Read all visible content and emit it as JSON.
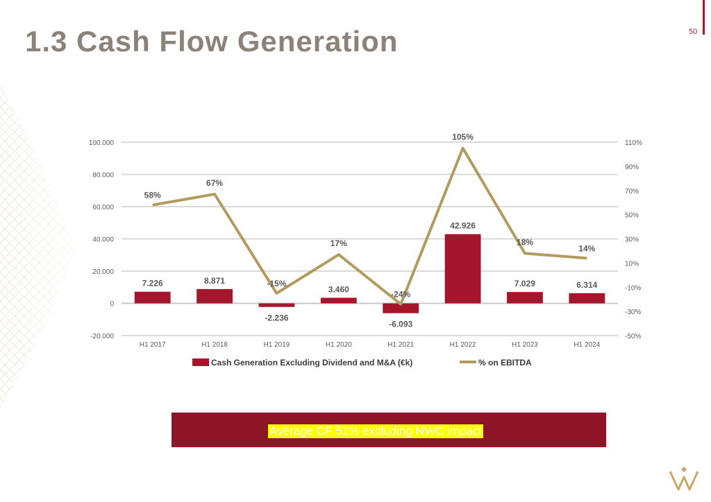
{
  "slide": {
    "title": "1.3 Cash Flow Generation",
    "page_number": "50",
    "callout": "Average CF 51% excluding NWC impact"
  },
  "colors": {
    "title": "#8c8279",
    "accent": "#9e1b2e",
    "bar": "#a3162c",
    "line": "#b39b60",
    "banner": "#8e1528",
    "highlight": "#ffff00"
  },
  "chart_data": {
    "type": "bar",
    "categories": [
      "H1 2017",
      "H1 2018",
      "H1 2019",
      "H1 2020",
      "H1 2021",
      "H1 2022",
      "H1 2023",
      "H1 2024"
    ],
    "series": [
      {
        "name": "Cash Generation Excluding Dividend and M&A (€k)",
        "type": "bar",
        "axis": "left",
        "values": [
          7226,
          8871,
          -2236,
          3460,
          -6093,
          42926,
          7029,
          6314
        ],
        "labels": [
          "7.226",
          "8.871",
          "-2.236",
          "3.460",
          "-6.093",
          "42.926",
          "7.029",
          "6.314"
        ]
      },
      {
        "name": "% on EBITDA",
        "type": "line",
        "axis": "right",
        "values": [
          58,
          67,
          -15,
          17,
          -24,
          105,
          18,
          14
        ],
        "labels": [
          "58%",
          "67%",
          "-15%",
          "17%",
          "-24%",
          "105%",
          "18%",
          "14%"
        ]
      }
    ],
    "y_left": {
      "lim": [
        -20000,
        100000
      ],
      "ticks": [
        100000,
        80000,
        60000,
        40000,
        20000,
        0,
        -20000
      ],
      "tick_labels": [
        "100.000",
        "80.000",
        "60.000",
        "40.000",
        "20.000",
        "0",
        "-20.000"
      ]
    },
    "y_right": {
      "lim": [
        -50,
        110
      ],
      "ticks": [
        110,
        90,
        70,
        50,
        30,
        10,
        -10,
        -30,
        -50
      ],
      "tick_labels": [
        "110%",
        "90%",
        "70%",
        "50%",
        "30%",
        "10%",
        "-10%",
        "-30%",
        "-50%"
      ]
    },
    "grid": true,
    "legend": "bottom"
  }
}
